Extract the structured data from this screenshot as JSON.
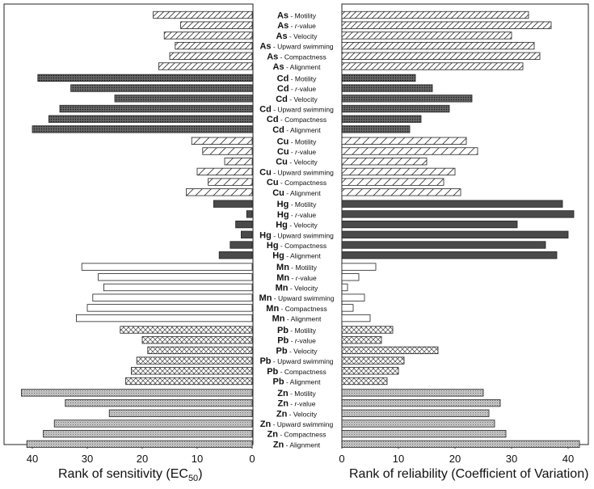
{
  "chart_data": {
    "type": "bar",
    "orientation": "horizontal-butterfly",
    "panels": [
      {
        "name": "sensitivity",
        "xlabel": "Rank of sensitivity (EC",
        "xlabel_sub": "50",
        "xlabel_suffix": ")",
        "xlim": [
          45,
          0
        ],
        "ticks": [
          40,
          30,
          20,
          10,
          0
        ]
      },
      {
        "name": "reliability",
        "xlabel": "Rank of reliability (Coefficient of Variation)",
        "xlim": [
          0,
          43
        ],
        "ticks": [
          0,
          10,
          20,
          30,
          40
        ]
      }
    ],
    "groups": [
      {
        "metal": "As",
        "pattern": "diag",
        "items": [
          {
            "endpoint": "Motility",
            "sensitivity": 18,
            "reliability": 33
          },
          {
            "endpoint": "r-value",
            "sensitivity": 13,
            "reliability": 37
          },
          {
            "endpoint": "Velocity",
            "sensitivity": 16,
            "reliability": 30
          },
          {
            "endpoint": "Upward swimming",
            "sensitivity": 14,
            "reliability": 34
          },
          {
            "endpoint": "Compactness",
            "sensitivity": 15,
            "reliability": 35
          },
          {
            "endpoint": "Alignment",
            "sensitivity": 17,
            "reliability": 32
          }
        ]
      },
      {
        "metal": "Cd",
        "pattern": "dark-dots",
        "items": [
          {
            "endpoint": "Motility",
            "sensitivity": 39,
            "reliability": 13
          },
          {
            "endpoint": "r-value",
            "sensitivity": 33,
            "reliability": 16
          },
          {
            "endpoint": "Velocity",
            "sensitivity": 25,
            "reliability": 23
          },
          {
            "endpoint": "Upward swimming",
            "sensitivity": 35,
            "reliability": 19
          },
          {
            "endpoint": "Compactness",
            "sensitivity": 37,
            "reliability": 14
          },
          {
            "endpoint": "Alignment",
            "sensitivity": 40,
            "reliability": 12
          }
        ]
      },
      {
        "metal": "Cu",
        "pattern": "diag-wide",
        "items": [
          {
            "endpoint": "Motility",
            "sensitivity": 11,
            "reliability": 22
          },
          {
            "endpoint": "r-value",
            "sensitivity": 9,
            "reliability": 24
          },
          {
            "endpoint": "Velocity",
            "sensitivity": 5,
            "reliability": 15
          },
          {
            "endpoint": "Upward swimming",
            "sensitivity": 10,
            "reliability": 20
          },
          {
            "endpoint": "Compactness",
            "sensitivity": 8,
            "reliability": 18
          },
          {
            "endpoint": "Alignment",
            "sensitivity": 12,
            "reliability": 21
          }
        ]
      },
      {
        "metal": "Hg",
        "pattern": "solid-dark",
        "items": [
          {
            "endpoint": "Motility",
            "sensitivity": 7,
            "reliability": 39
          },
          {
            "endpoint": "r-value",
            "sensitivity": 1,
            "reliability": 41
          },
          {
            "endpoint": "Velocity",
            "sensitivity": 3,
            "reliability": 31
          },
          {
            "endpoint": "Upward swimming",
            "sensitivity": 2,
            "reliability": 40
          },
          {
            "endpoint": "Compactness",
            "sensitivity": 4,
            "reliability": 36
          },
          {
            "endpoint": "Alignment",
            "sensitivity": 6,
            "reliability": 38
          }
        ]
      },
      {
        "metal": "Mn",
        "pattern": "white",
        "items": [
          {
            "endpoint": "Motility",
            "sensitivity": 31,
            "reliability": 6
          },
          {
            "endpoint": "r-value",
            "sensitivity": 28,
            "reliability": 3
          },
          {
            "endpoint": "Velocity",
            "sensitivity": 27,
            "reliability": 1
          },
          {
            "endpoint": "Upward swimming",
            "sensitivity": 29,
            "reliability": 4
          },
          {
            "endpoint": "Compactness",
            "sensitivity": 30,
            "reliability": 2
          },
          {
            "endpoint": "Alignment",
            "sensitivity": 32,
            "reliability": 5
          }
        ]
      },
      {
        "metal": "Pb",
        "pattern": "cross",
        "items": [
          {
            "endpoint": "Motility",
            "sensitivity": 24,
            "reliability": 9
          },
          {
            "endpoint": "r-value",
            "sensitivity": 20,
            "reliability": 7
          },
          {
            "endpoint": "Velocity",
            "sensitivity": 19,
            "reliability": 17
          },
          {
            "endpoint": "Upward swimming",
            "sensitivity": 21,
            "reliability": 11
          },
          {
            "endpoint": "Compactness",
            "sensitivity": 22,
            "reliability": 10
          },
          {
            "endpoint": "Alignment",
            "sensitivity": 23,
            "reliability": 8
          }
        ]
      },
      {
        "metal": "Zn",
        "pattern": "light-dots",
        "items": [
          {
            "endpoint": "Motility",
            "sensitivity": 42,
            "reliability": 25
          },
          {
            "endpoint": "r-value",
            "sensitivity": 34,
            "reliability": 28
          },
          {
            "endpoint": "Velocity",
            "sensitivity": 26,
            "reliability": 26
          },
          {
            "endpoint": "Upward swimming",
            "sensitivity": 36,
            "reliability": 27
          },
          {
            "endpoint": "Compactness",
            "sensitivity": 38,
            "reliability": 29
          },
          {
            "endpoint": "Alignment",
            "sensitivity": 41,
            "reliability": 42
          }
        ]
      }
    ]
  }
}
